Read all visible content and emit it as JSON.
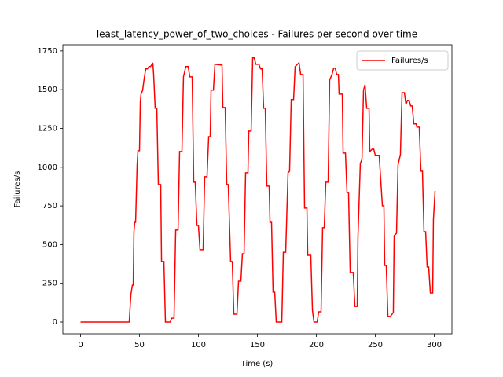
{
  "chart_data": {
    "type": "line",
    "title": "least_latency_power_of_two_choices - Failures per second over time",
    "x_label": "Time (s)",
    "y_label": "Failures/s",
    "x": [
      0,
      41.3,
      42.7,
      44,
      44.7,
      45.3,
      46,
      46.7,
      48,
      48.7,
      50,
      50.7,
      51.3,
      52.7,
      54,
      55.3,
      56.7,
      58,
      59.3,
      60.7,
      61.3,
      62,
      63.3,
      64.7,
      66,
      68,
      68.7,
      70.7,
      72,
      76,
      77.3,
      79.3,
      80.7,
      82.7,
      84,
      86,
      87.3,
      89.3,
      91.3,
      92.7,
      94.7,
      96,
      97.3,
      98.7,
      100,
      101.3,
      104,
      105.3,
      107.3,
      108.7,
      110,
      110.7,
      112.7,
      114,
      120,
      120.7,
      122.7,
      124,
      125.3,
      127.3,
      128.7,
      130,
      132.7,
      134,
      136,
      137.3,
      138.7,
      140,
      142,
      142.7,
      144.7,
      146,
      147.3,
      148.7,
      151.3,
      152.7,
      154,
      155.3,
      156.7,
      158,
      160,
      160.7,
      162,
      163.3,
      164.7,
      166,
      170.7,
      172,
      174,
      176,
      177.3,
      178.7,
      180.7,
      182,
      184,
      185.3,
      186.7,
      188.7,
      190,
      192,
      192.7,
      195.3,
      196.7,
      198,
      200.7,
      202,
      204,
      205.3,
      206.7,
      208,
      210,
      211.3,
      213.3,
      214.7,
      216,
      217.3,
      218.7,
      219.3,
      222,
      222.7,
      224.7,
      226,
      227.3,
      228.7,
      231.3,
      232.7,
      234.7,
      235.3,
      237.3,
      238.7,
      240,
      241.3,
      242.7,
      244.7,
      245.3,
      247.3,
      248.7,
      250,
      253.3,
      256,
      257.3,
      258,
      259.3,
      260.7,
      262.7,
      265.3,
      266,
      268,
      269.3,
      271.3,
      272.7,
      274.7,
      276,
      277.3,
      278.7,
      280,
      281.3,
      282.7,
      284.7,
      285.3,
      287.3,
      288.7,
      290,
      291.3,
      292.7,
      294,
      295.3,
      296.7,
      298.7,
      299.3,
      300.7
    ],
    "series": [
      {
        "name": "Failures/s",
        "color": "#ff0000",
        "values": [
          0,
          0,
          178,
          238,
          238,
          583,
          644,
          644,
          1015,
          1106,
          1106,
          1420,
          1471,
          1497,
          1573,
          1634,
          1634,
          1649,
          1649,
          1664,
          1674,
          1598,
          1380,
          1380,
          888,
          888,
          391,
          391,
          0,
          0,
          25,
          25,
          594,
          594,
          1101,
          1101,
          1583,
          1649,
          1649,
          1583,
          1583,
          903,
          903,
          624,
          624,
          467,
          467,
          939,
          939,
          1197,
          1197,
          1497,
          1497,
          1664,
          1659,
          1385,
          1385,
          888,
          888,
          391,
          391,
          51,
          51,
          264,
          264,
          441,
          441,
          964,
          964,
          1233,
          1233,
          1705,
          1705,
          1664,
          1664,
          1634,
          1634,
          1380,
          1380,
          878,
          878,
          644,
          644,
          193,
          193,
          0,
          0,
          451,
          451,
          964,
          974,
          1436,
          1436,
          1649,
          1664,
          1674,
          1598,
          1598,
          736,
          736,
          431,
          431,
          76,
          0,
          0,
          66,
          66,
          609,
          609,
          903,
          903,
          1563,
          1598,
          1639,
          1639,
          1598,
          1598,
          1471,
          1471,
          1091,
          1091,
          837,
          837,
          320,
          320,
          101,
          101,
          548,
          1025,
          1050,
          1497,
          1532,
          1380,
          1380,
          1101,
          1116,
          1116,
          1076,
          1076,
          751,
          751,
          365,
          365,
          36,
          36,
          61,
          558,
          573,
          1015,
          1081,
          1481,
          1481,
          1405,
          1431,
          1431,
          1395,
          1395,
          1279,
          1279,
          1258,
          1258,
          974,
          974,
          583,
          583,
          355,
          355,
          188,
          188,
          660,
          847
        ]
      }
    ],
    "xlim": [
      -15,
      315
    ],
    "xticks": [
      0,
      50,
      100,
      150,
      200,
      250,
      300
    ],
    "ylim": [
      -76,
      1790
    ],
    "yticks": [
      0,
      250,
      500,
      750,
      1000,
      1250,
      1500,
      1750
    ],
    "grid": false,
    "legend": "upper right"
  }
}
